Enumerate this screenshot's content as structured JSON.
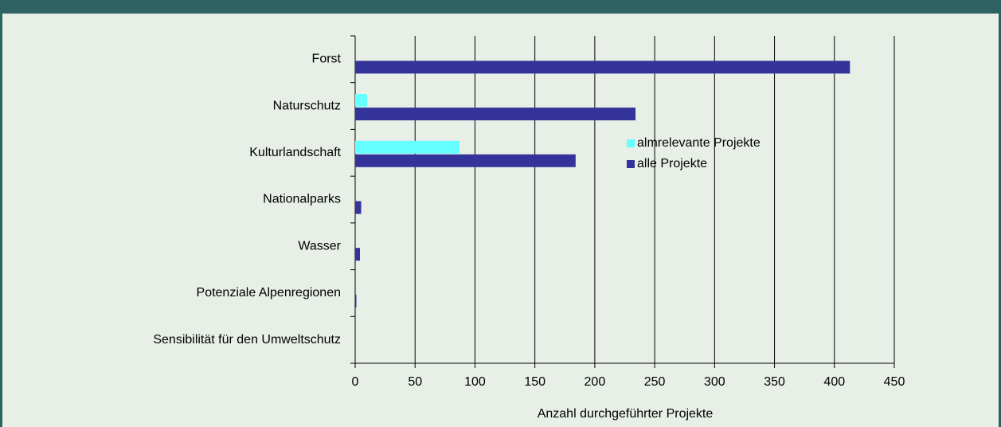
{
  "chart_data": {
    "type": "bar",
    "orientation": "horizontal",
    "categories": [
      "Forst",
      "Naturschutz",
      "Kulturlandschaft",
      "Nationalparks",
      "Wasser",
      "Potenziale Alpenregionen",
      "Sensibilität für den Umweltschutz"
    ],
    "series": [
      {
        "name": "almrelevante Projekte",
        "color": "#66ffff",
        "values": [
          0,
          10,
          87,
          0,
          0,
          0,
          0
        ]
      },
      {
        "name": "alle Projekte",
        "color": "#333399",
        "values": [
          413,
          234,
          184,
          5,
          4,
          1,
          0
        ]
      }
    ],
    "x_label": "Anzahl durchgeführter Projekte",
    "xlim": [
      0,
      450
    ],
    "xticks": [
      0,
      50,
      100,
      150,
      200,
      250,
      300,
      350,
      400,
      450
    ],
    "grid": true
  }
}
